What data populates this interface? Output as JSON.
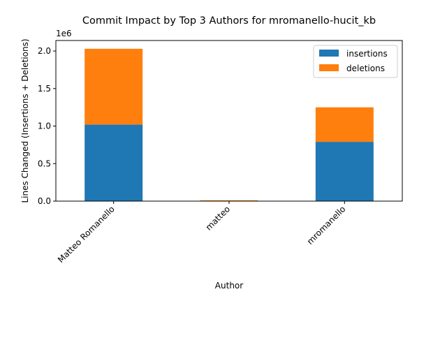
{
  "chart_data": {
    "type": "bar",
    "stacked": true,
    "title": "Commit Impact by Top 3 Authors for mromanello-hucit_kb",
    "xlabel": "Author",
    "ylabel": "Lines Changed (Insertions + Deletions)",
    "y_offset_label": "1e6",
    "ylim": [
      0,
      2.14
    ],
    "yticks": [
      0.0,
      0.5,
      1.0,
      1.5,
      2.0
    ],
    "ytick_labels": [
      "0.0",
      "0.5",
      "1.0",
      "1.5",
      "2.0"
    ],
    "categories": [
      "Matteo Romanello",
      "matteo",
      "mromanello"
    ],
    "series": [
      {
        "name": "insertions",
        "color": "#1f77b4",
        "values": [
          1.02,
          0.008,
          0.79
        ]
      },
      {
        "name": "deletions",
        "color": "#ff7f0e",
        "values": [
          1.01,
          0.003,
          0.46
        ]
      }
    ],
    "legend_position": "upper right",
    "grid": false
  }
}
